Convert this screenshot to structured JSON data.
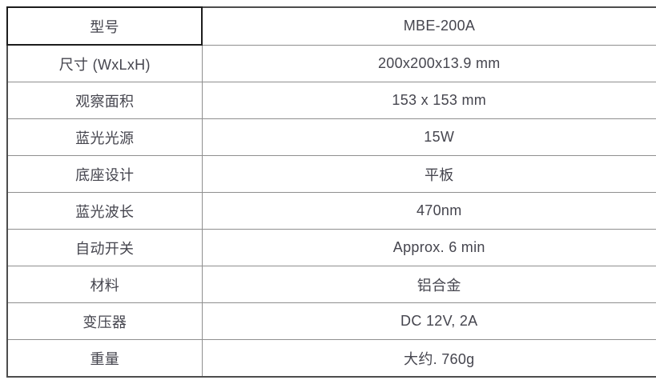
{
  "table": {
    "name": "product-spec-table",
    "columns": [
      "label",
      "value"
    ],
    "rows": [
      {
        "label": "型号",
        "value": "MBE-200A"
      },
      {
        "label": "尺寸 (WxLxH)",
        "value": "200x200x13.9 mm"
      },
      {
        "label": "观察面积",
        "value": "153 x 153 mm"
      },
      {
        "label": "蓝光光源",
        "value": "15W"
      },
      {
        "label": "底座设计",
        "value": "平板"
      },
      {
        "label": "蓝光波长",
        "value": "470nm"
      },
      {
        "label": "自动开关",
        "value": "Approx. 6 min"
      },
      {
        "label": "材料",
        "value": "铝合金"
      },
      {
        "label": "变压器",
        "value": "DC 12V, 2A"
      },
      {
        "label": "重量",
        "value": "大约. 760g"
      }
    ]
  },
  "colors": {
    "outer_border": "#4d4d4d",
    "inner_border": "#8f8f8f",
    "header_cell_border": "#1c1c1c",
    "text": "#45454e",
    "background": "#ffffff"
  }
}
